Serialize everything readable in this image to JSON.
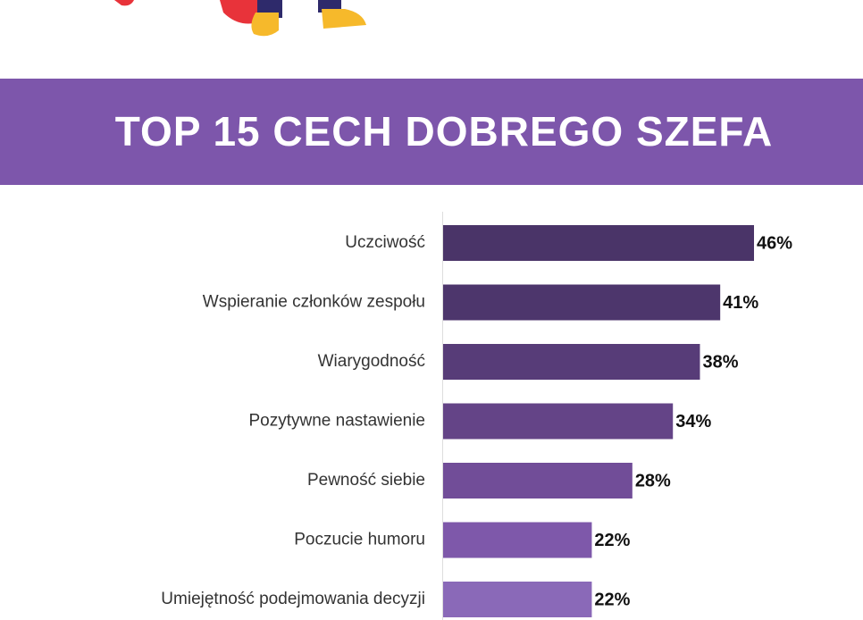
{
  "chart_data": {
    "type": "barh",
    "title": "TOP 15 CECH DOBREGO SZEFA",
    "categories": [
      "Uczciwość",
      "Wspieranie członków zespołu",
      "Wiarygodność",
      "Pozytywne nastawienie",
      "Pewność siebie",
      "Poczucie humoru",
      "Umiejętność podejmowania decyzji"
    ],
    "values": [
      46,
      41,
      38,
      34,
      28,
      22,
      22
    ],
    "value_labels": [
      "46%",
      "41%",
      "38%",
      "34%",
      "28%",
      "22%",
      "22%"
    ],
    "colors": [
      "#4a3468",
      "#4d366c",
      "#573c78",
      "#644487",
      "#714d98",
      "#7e58aa",
      "#8a69b8"
    ]
  }
}
